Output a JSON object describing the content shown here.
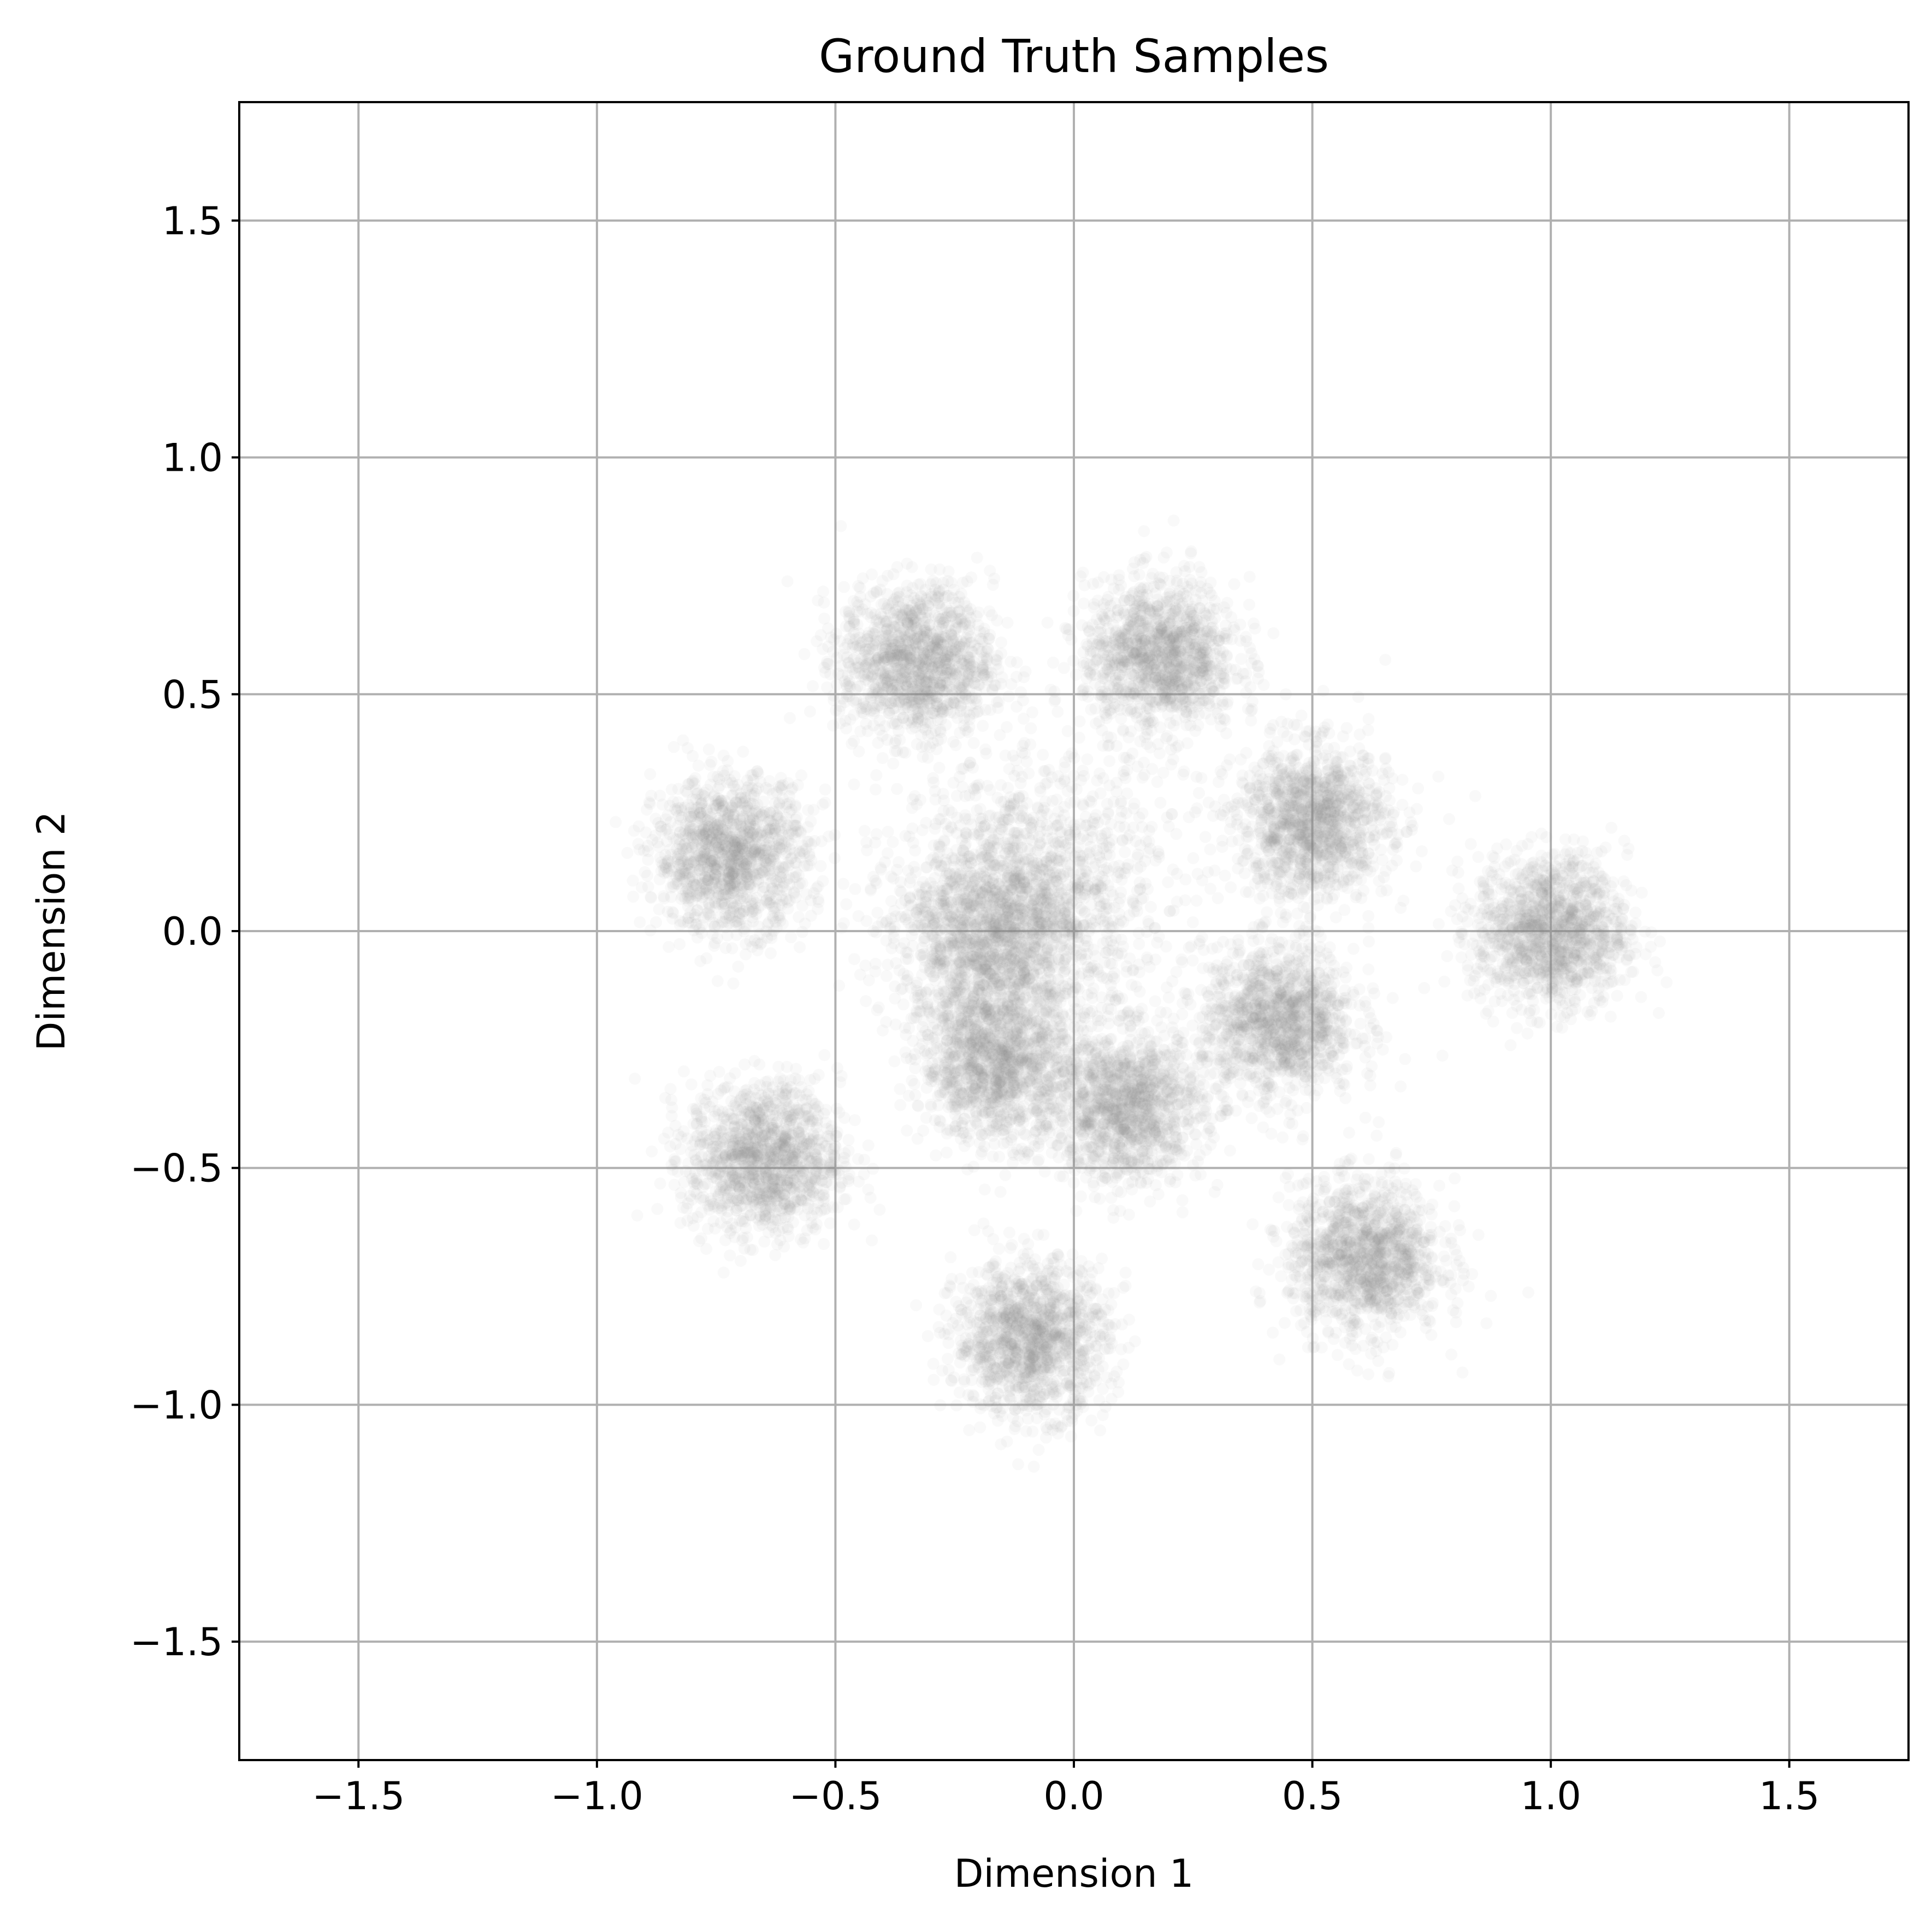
{
  "chart_data": {
    "type": "scatter",
    "title": "Ground Truth Samples",
    "xlabel": "Dimension 1",
    "ylabel": "Dimension 2",
    "xlim": [
      -1.75,
      1.75
    ],
    "ylim": [
      -1.75,
      1.75
    ],
    "xticks": [
      -1.5,
      -1.0,
      -0.5,
      0.0,
      0.5,
      1.0,
      1.5
    ],
    "yticks": [
      -1.5,
      -1.0,
      -0.5,
      0.0,
      0.5,
      1.0,
      1.5
    ],
    "xtick_labels": [
      "−1.5",
      "−1.0",
      "−0.5",
      "0.0",
      "0.5",
      "1.0",
      "1.5"
    ],
    "ytick_labels": [
      "−1.5",
      "−1.0",
      "−0.5",
      "0.0",
      "0.5",
      "1.0",
      "1.5"
    ],
    "grid": true,
    "marker_color": "#808080",
    "marker_alpha": 0.05,
    "series": [
      {
        "clusters": [
          {
            "center": [
              -0.08,
              0.08
            ],
            "spread": 0.14
          },
          {
            "center": [
              -0.18,
              -0.02
            ],
            "spread": 0.1
          },
          {
            "center": [
              -0.33,
              0.57
            ],
            "spread": 0.08
          },
          {
            "center": [
              0.18,
              0.58
            ],
            "spread": 0.08
          },
          {
            "center": [
              -0.72,
              0.16
            ],
            "spread": 0.08
          },
          {
            "center": [
              0.5,
              0.23
            ],
            "spread": 0.08
          },
          {
            "center": [
              1.0,
              0.0
            ],
            "spread": 0.08
          },
          {
            "center": [
              0.43,
              -0.19
            ],
            "spread": 0.08
          },
          {
            "center": [
              -0.16,
              -0.28
            ],
            "spread": 0.08
          },
          {
            "center": [
              0.11,
              -0.37
            ],
            "spread": 0.08
          },
          {
            "center": [
              -0.65,
              -0.48
            ],
            "spread": 0.08
          },
          {
            "center": [
              0.61,
              -0.69
            ],
            "spread": 0.08
          },
          {
            "center": [
              -0.09,
              -0.86
            ],
            "spread": 0.08
          }
        ]
      }
    ]
  }
}
